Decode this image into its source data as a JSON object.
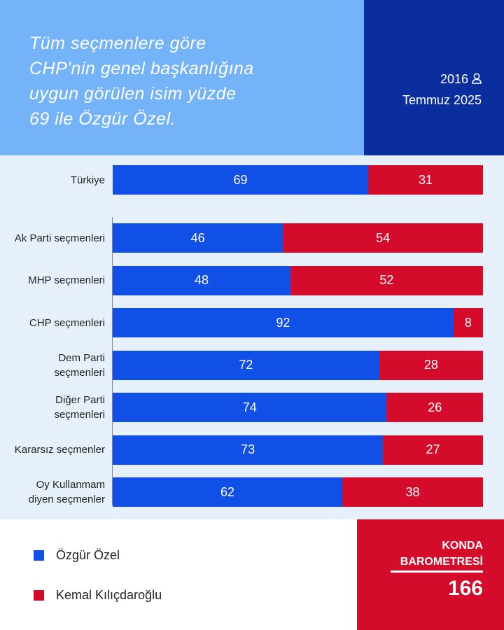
{
  "chart_data": {
    "type": "bar",
    "orientation": "horizontal",
    "stacked": true,
    "title": [
      "Tüm seçmenlere göre",
      "CHP'nin genel başkanlığına",
      "uygun görülen isim yüzde",
      "69 ile Özgür Özel."
    ],
    "categories": [
      "Türkiye",
      "Ak Parti seçmenleri",
      "MHP seçmenleri",
      "CHP seçmenleri",
      "Dem Parti seçmenleri",
      "Diğer Parti seçmenleri",
      "Kararsız seçmenler",
      "Oy Kullanmam diyen seçmenler"
    ],
    "series": [
      {
        "name": "Özgür Özel",
        "color": "#1150e6",
        "values": [
          69,
          46,
          48,
          92,
          72,
          74,
          73,
          62
        ]
      },
      {
        "name": "Kemal Kılıçdaroğlu",
        "color": "#d40b2a",
        "values": [
          31,
          54,
          52,
          8,
          28,
          26,
          27,
          38
        ]
      }
    ],
    "xlim": [
      0,
      100
    ]
  },
  "header": {
    "wave": "2016",
    "date": "Temmuz 2025"
  },
  "footer": {
    "brand": "KONDA",
    "subtitle": "BAROMETRESİ",
    "number": 166
  }
}
